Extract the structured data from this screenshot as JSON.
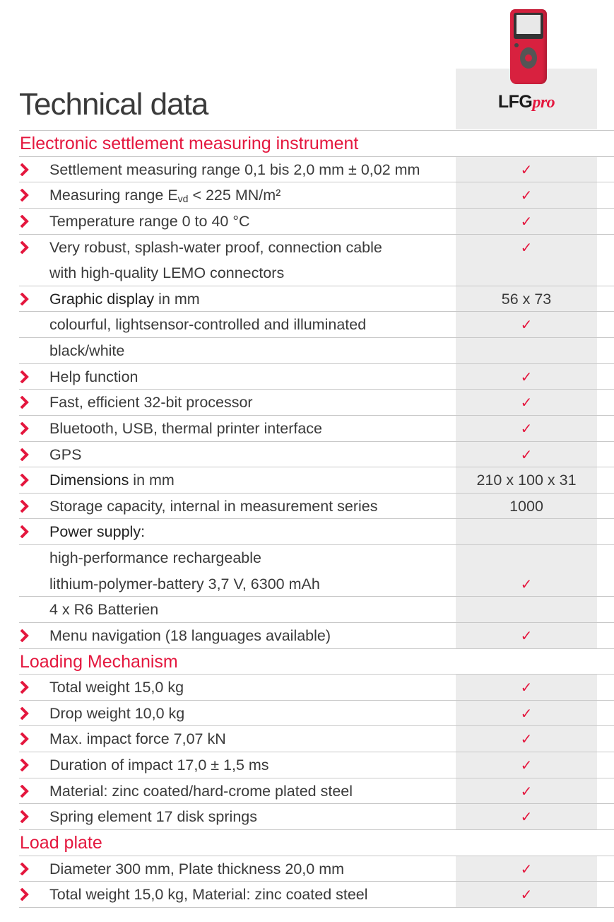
{
  "title": "Technical data",
  "product": {
    "name_main": "LFG",
    "name_suffix": "pro"
  },
  "colors": {
    "accent": "#e4173e",
    "column": "#ececec"
  },
  "sections": [
    {
      "heading": "Electronic settlement measuring instrument",
      "rows": [
        {
          "chev": true,
          "lines": [
            {
              "text": "Settlement measuring range 0,1 bis 2,0 mm ± 0,02 mm",
              "check": true
            }
          ]
        },
        {
          "chev": true,
          "lines": [
            {
              "pre": "Measuring range E",
              "sub": "vd",
              "text": " < 225 MN/m²",
              "check": true
            }
          ]
        },
        {
          "chev": true,
          "lines": [
            {
              "text": "Temperature range 0 to 40 °C",
              "check": true
            }
          ]
        },
        {
          "chev": true,
          "lines": [
            {
              "text": "Very robust, splash-water proof, connection cable",
              "check": true
            },
            {
              "text": "with high-quality LEMO connectors"
            }
          ]
        },
        {
          "chev": true,
          "lines": [
            {
              "bold": "Graphic display",
              "text": " in mm",
              "value": "56 x 73"
            }
          ]
        },
        {
          "chev": false,
          "lines": [
            {
              "text": "colourful, lightsensor-controlled and illuminated",
              "check": true
            }
          ]
        },
        {
          "chev": false,
          "lines": [
            {
              "text": "black/white"
            }
          ]
        },
        {
          "chev": true,
          "lines": [
            {
              "text": "Help function",
              "check": true
            }
          ]
        },
        {
          "chev": true,
          "lines": [
            {
              "text": "Fast, efficient 32-bit processor",
              "check": true
            }
          ]
        },
        {
          "chev": true,
          "lines": [
            {
              "text": "Bluetooth, USB, thermal printer interface",
              "check": true
            }
          ]
        },
        {
          "chev": true,
          "lines": [
            {
              "text": "GPS",
              "check": true
            }
          ]
        },
        {
          "chev": true,
          "lines": [
            {
              "bold": "Dimensions",
              "text": " in mm",
              "value": "210 x 100 x 31"
            }
          ]
        },
        {
          "chev": true,
          "lines": [
            {
              "text": "Storage capacity, internal in measurement series",
              "value": "1000"
            }
          ]
        },
        {
          "chev": true,
          "lines": [
            {
              "bold": "Power supply:",
              "text": ""
            }
          ]
        },
        {
          "chev": false,
          "lines": [
            {
              "text": "high-performance rechargeable"
            },
            {
              "text": "lithium-polymer-battery 3,7 V, 6300 mAh",
              "check": true
            }
          ]
        },
        {
          "chev": false,
          "lines": [
            {
              "text": "4 x R6 Batterien"
            }
          ]
        },
        {
          "chev": true,
          "lines": [
            {
              "text": "Menu navigation (18 languages available)",
              "check": true
            }
          ]
        }
      ]
    },
    {
      "heading": "Loading Mechanism",
      "rows": [
        {
          "chev": true,
          "lines": [
            {
              "text": "Total weight 15,0 kg",
              "check": true
            }
          ]
        },
        {
          "chev": true,
          "lines": [
            {
              "text": "Drop weight 10,0 kg",
              "check": true
            }
          ]
        },
        {
          "chev": true,
          "lines": [
            {
              "text": "Max. impact force 7,07 kN",
              "check": true
            }
          ]
        },
        {
          "chev": true,
          "lines": [
            {
              "text": "Duration of impact 17,0 ± 1,5 ms",
              "check": true
            }
          ]
        },
        {
          "chev": true,
          "lines": [
            {
              "text": "Material: zinc coated/hard-crome plated steel",
              "check": true
            }
          ]
        },
        {
          "chev": true,
          "lines": [
            {
              "text": "Spring element 17 disk springs",
              "check": true
            }
          ]
        }
      ]
    },
    {
      "heading": "Load plate",
      "rows": [
        {
          "chev": true,
          "lines": [
            {
              "text": "Diameter 300 mm, Plate thickness 20,0 mm",
              "check": true
            }
          ]
        },
        {
          "chev": true,
          "lines": [
            {
              "text": "Total weight 15,0 kg, Material: zinc coated steel",
              "check": true
            }
          ]
        }
      ]
    }
  ],
  "check_symbol": "✓"
}
